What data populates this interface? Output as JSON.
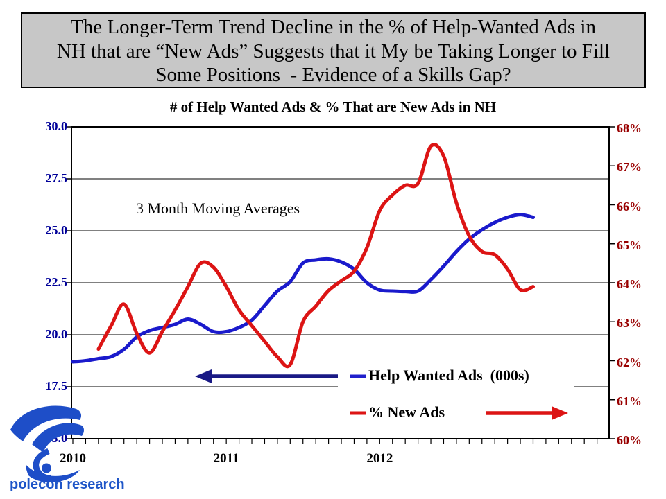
{
  "header": {
    "line1": "The Longer-Term Trend Decline in the % of Help-Wanted Ads in",
    "line2": "NH that are “New Ads” Suggests that it My be Taking Longer to Fill",
    "line3": "Some Positions  - Evidence of a Skills Gap?",
    "bg_color": "#c7c7c7"
  },
  "chart_data": {
    "type": "line",
    "title": "# of Help Wanted Ads & % That are New Ads in NH",
    "annotation": "3 Month Moving Averages",
    "x": [
      "Jan-10",
      "Feb-10",
      "Mar-10",
      "Apr-10",
      "May-10",
      "Jun-10",
      "Jul-10",
      "Aug-10",
      "Sep-10",
      "Oct-10",
      "Nov-10",
      "Dec-10",
      "Jan-11",
      "Feb-11",
      "Mar-11",
      "Apr-11",
      "May-11",
      "Jun-11",
      "Jul-11",
      "Aug-11",
      "Sep-11",
      "Oct-11",
      "Nov-11",
      "Dec-11",
      "Jan-12",
      "Feb-12",
      "Mar-12",
      "Apr-12",
      "May-12",
      "Jun-12",
      "Jul-12",
      "Aug-12",
      "Sep-12",
      "Oct-12",
      "Nov-12",
      "Dec-12",
      "Jan-13"
    ],
    "x_year_labels": [
      "2010",
      "2011",
      "2012"
    ],
    "left_axis": {
      "title": "Help Wanted Ads (000s)",
      "tick_labels": [
        "30.0",
        "27.5",
        "25.0",
        "22.5",
        "20.0",
        "17.5",
        "15.0"
      ],
      "tick_values": [
        30.0,
        27.5,
        25.0,
        22.5,
        20.0,
        17.5,
        15.0
      ],
      "min": 15.0,
      "max": 30.0,
      "color": "#000099"
    },
    "right_axis": {
      "title": "% New Ads",
      "tick_labels": [
        "68%",
        "67%",
        "66%",
        "65%",
        "64%",
        "63%",
        "62%",
        "61%",
        "60%"
      ],
      "tick_values": [
        68,
        67,
        66,
        65,
        64,
        63,
        62,
        61,
        60
      ],
      "min": 60,
      "max": 68,
      "color": "#990000"
    },
    "grid": true,
    "legend_position": "inside-lower-right",
    "series": [
      {
        "name": "Help Wanted Ads  (000s)",
        "axis": "left",
        "color": "#1A1ACC",
        "values": [
          18.7,
          18.75,
          18.85,
          18.95,
          19.3,
          19.9,
          20.2,
          20.35,
          20.5,
          20.75,
          20.5,
          20.15,
          20.15,
          20.35,
          20.7,
          21.4,
          22.1,
          22.55,
          23.45,
          23.6,
          23.65,
          23.5,
          23.15,
          22.5,
          22.15,
          22.1,
          22.08,
          22.1,
          22.65,
          23.3,
          24.0,
          24.6,
          25.05,
          25.4,
          25.65,
          25.78,
          25.65
        ]
      },
      {
        "name": "% New Ads",
        "axis": "right",
        "color": "#DC1414",
        "values": [
          null,
          null,
          62.3,
          62.9,
          63.45,
          62.7,
          62.2,
          62.75,
          63.3,
          63.9,
          64.5,
          64.4,
          63.9,
          63.3,
          62.9,
          62.5,
          62.1,
          61.9,
          63.0,
          63.4,
          63.8,
          64.05,
          64.3,
          64.9,
          65.85,
          66.25,
          66.5,
          66.55,
          67.5,
          67.25,
          66.05,
          65.2,
          64.8,
          64.72,
          64.35,
          63.82,
          63.9
        ]
      }
    ]
  },
  "legend": {
    "item1": "Help Wanted Ads  (000s)",
    "item2": "% New Ads",
    "blue_arrow_color": "#191985",
    "blue_dash_color": "#2020CC",
    "red_color": "#DC1414"
  },
  "logo": {
    "text": "polecon research",
    "color": "#1E4EC8"
  }
}
